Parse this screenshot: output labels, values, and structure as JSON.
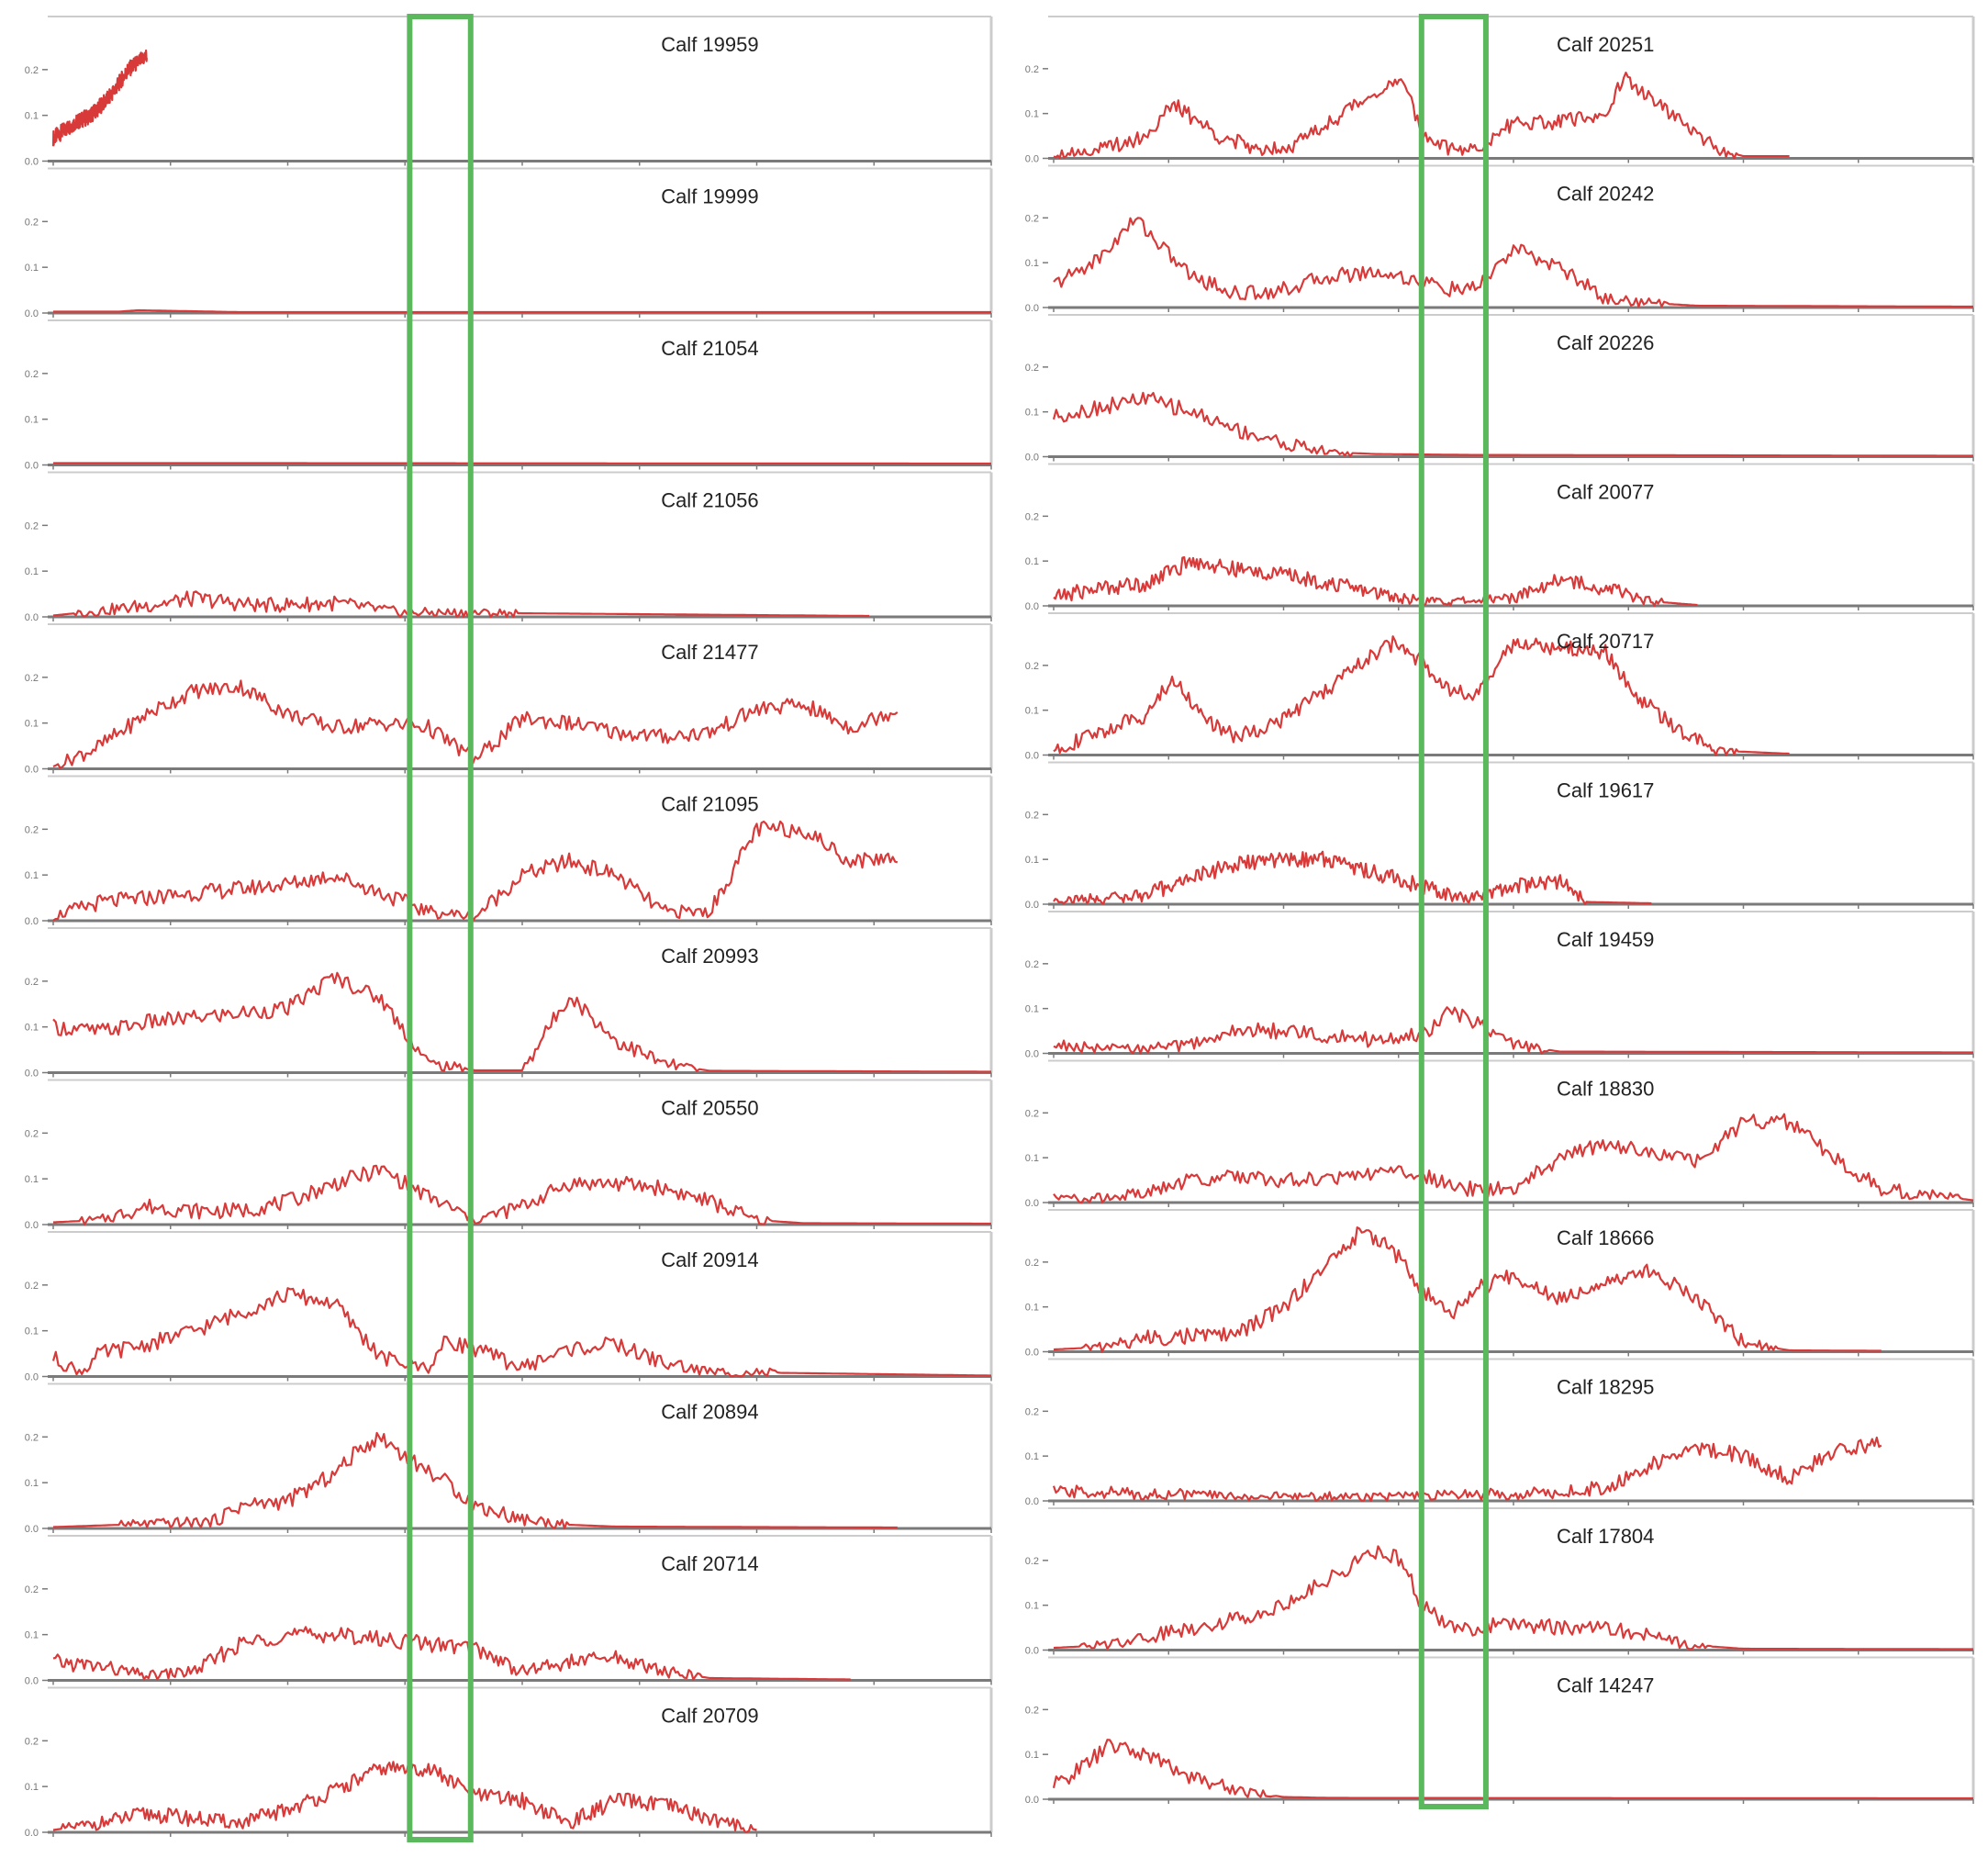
{
  "colors": {
    "series": "#d83a3a",
    "baseline": "#c02020",
    "highlight": "#5cb85c",
    "panel_border": "#cccccc",
    "axis": "#7a7a7a"
  },
  "chart_data": {
    "type": "line",
    "columns": [
      {
        "highlight_x": [
          0.38,
          0.445
        ],
        "panels": [
          {
            "title": "Calf 19959",
            "ylim": [
              0,
              0.3
            ],
            "x": [
              0,
              0.02,
              0.04,
              0.06,
              0.08,
              0.1
            ],
            "y": [
              0.05,
              0.08,
              0.1,
              0.14,
              0.2,
              0.23
            ]
          },
          {
            "title": "Calf 19999",
            "ylim": [
              0,
              0.3
            ],
            "x": [
              0,
              0.07,
              0.09,
              0.2,
              1.0
            ],
            "y": [
              0.003,
              0.003,
              0.006,
              0.002,
              0.002
            ]
          },
          {
            "title": "Calf 21054",
            "ylim": [
              0,
              0.3
            ],
            "x": [
              0,
              0.2,
              1.0
            ],
            "y": [
              0.004,
              0.004,
              0.003
            ]
          },
          {
            "title": "Calf 21056",
            "ylim": [
              0,
              0.3
            ],
            "x": [
              0,
              0.08,
              0.15,
              0.22,
              0.3,
              0.37,
              0.87
            ],
            "y": [
              0.003,
              0.02,
              0.04,
              0.025,
              0.03,
              0.01,
              0.002
            ]
          },
          {
            "title": "Calf 21477",
            "ylim": [
              0,
              0.3
            ],
            "x": [
              0,
              0.05,
              0.1,
              0.15,
              0.2,
              0.25,
              0.3,
              0.35,
              0.4,
              0.45,
              0.5,
              0.55,
              0.6,
              0.65,
              0.7,
              0.75,
              0.8,
              0.85,
              0.9
            ],
            "y": [
              0.005,
              0.05,
              0.12,
              0.17,
              0.18,
              0.12,
              0.09,
              0.1,
              0.09,
              0.02,
              0.11,
              0.1,
              0.08,
              0.07,
              0.08,
              0.13,
              0.14,
              0.09,
              0.13
            ]
          },
          {
            "title": "Calf 21095",
            "ylim": [
              0,
              0.3
            ],
            "x": [
              0,
              0.05,
              0.1,
              0.15,
              0.2,
              0.25,
              0.3,
              0.35,
              0.4,
              0.45,
              0.5,
              0.55,
              0.6,
              0.65,
              0.7,
              0.75,
              0.8,
              0.85,
              0.9
            ],
            "y": [
              0.01,
              0.04,
              0.05,
              0.06,
              0.07,
              0.08,
              0.1,
              0.06,
              0.02,
              0.01,
              0.1,
              0.13,
              0.1,
              0.02,
              0.02,
              0.2,
              0.2,
              0.13,
              0.14
            ]
          },
          {
            "title": "Calf 20993",
            "ylim": [
              0,
              0.3
            ],
            "x": [
              0,
              0.05,
              0.1,
              0.15,
              0.2,
              0.25,
              0.3,
              0.35,
              0.4,
              0.45,
              0.5,
              0.55,
              0.6,
              0.65,
              0.7,
              1.0
            ],
            "y": [
              0.1,
              0.09,
              0.11,
              0.12,
              0.13,
              0.14,
              0.21,
              0.16,
              0.02,
              0.005,
              0.005,
              0.17,
              0.07,
              0.02,
              0.004,
              0.002
            ]
          },
          {
            "title": "Calf 20550",
            "ylim": [
              0,
              0.3
            ],
            "x": [
              0,
              0.05,
              0.1,
              0.15,
              0.2,
              0.25,
              0.3,
              0.35,
              0.4,
              0.45,
              0.5,
              0.55,
              0.6,
              0.65,
              0.7,
              0.75,
              0.8,
              1.0
            ],
            "y": [
              0.005,
              0.01,
              0.04,
              0.03,
              0.03,
              0.05,
              0.09,
              0.12,
              0.06,
              0.01,
              0.04,
              0.09,
              0.09,
              0.08,
              0.05,
              0.01,
              0.003,
              0.002
            ]
          },
          {
            "title": "Calf 20914",
            "ylim": [
              0,
              0.3
            ],
            "x": [
              0,
              0.03,
              0.05,
              0.1,
              0.15,
              0.2,
              0.25,
              0.3,
              0.35,
              0.4,
              0.42,
              0.45,
              0.5,
              0.55,
              0.6,
              0.65,
              0.7,
              1.0
            ],
            "y": [
              0.04,
              0.01,
              0.05,
              0.07,
              0.1,
              0.14,
              0.18,
              0.16,
              0.04,
              0.02,
              0.08,
              0.06,
              0.02,
              0.06,
              0.07,
              0.03,
              0.01,
              0.002
            ]
          },
          {
            "title": "Calf 20894",
            "ylim": [
              0,
              0.3
            ],
            "x": [
              0,
              0.1,
              0.17,
              0.2,
              0.25,
              0.3,
              0.33,
              0.35,
              0.38,
              0.42,
              0.45,
              0.5,
              0.55,
              0.6,
              0.9
            ],
            "y": [
              0.003,
              0.01,
              0.015,
              0.05,
              0.06,
              0.12,
              0.18,
              0.2,
              0.15,
              0.1,
              0.05,
              0.02,
              0.008,
              0.004,
              0.002
            ]
          },
          {
            "title": "Calf 20714",
            "ylim": [
              0,
              0.3
            ],
            "x": [
              0,
              0.05,
              0.1,
              0.15,
              0.2,
              0.25,
              0.3,
              0.35,
              0.4,
              0.45,
              0.5,
              0.55,
              0.6,
              0.65,
              0.7,
              0.8,
              0.85
            ],
            "y": [
              0.04,
              0.03,
              0.01,
              0.02,
              0.08,
              0.1,
              0.1,
              0.09,
              0.08,
              0.07,
              0.02,
              0.04,
              0.05,
              0.02,
              0.005,
              0.003,
              0.002
            ]
          },
          {
            "title": "Calf 20709",
            "ylim": [
              0,
              0.3
            ],
            "x": [
              0,
              0.05,
              0.1,
              0.15,
              0.2,
              0.25,
              0.3,
              0.35,
              0.4,
              0.45,
              0.5,
              0.55,
              0.6,
              0.65,
              0.7,
              0.75
            ],
            "y": [
              0.005,
              0.02,
              0.04,
              0.03,
              0.02,
              0.05,
              0.09,
              0.14,
              0.14,
              0.08,
              0.07,
              0.02,
              0.07,
              0.06,
              0.03,
              0.005
            ]
          }
        ]
      },
      {
        "highlight_x": [
          0.4,
          0.47
        ],
        "panels": [
          {
            "title": "Calf 20251",
            "ylim": [
              0,
              0.3
            ],
            "x": [
              0,
              0.05,
              0.1,
              0.13,
              0.18,
              0.22,
              0.26,
              0.3,
              0.35,
              0.38,
              0.4,
              0.43,
              0.46,
              0.5,
              0.55,
              0.6,
              0.62,
              0.67,
              0.72,
              0.75,
              0.8
            ],
            "y": [
              0.01,
              0.02,
              0.05,
              0.12,
              0.05,
              0.02,
              0.03,
              0.08,
              0.15,
              0.17,
              0.06,
              0.02,
              0.02,
              0.08,
              0.08,
              0.1,
              0.18,
              0.1,
              0.02,
              0.005,
              0.005
            ]
          },
          {
            "title": "Calf 20242",
            "ylim": [
              0,
              0.3
            ],
            "x": [
              0,
              0.05,
              0.09,
              0.12,
              0.15,
              0.2,
              0.25,
              0.3,
              0.35,
              0.4,
              0.43,
              0.46,
              0.5,
              0.55,
              0.6,
              0.65,
              0.7,
              1.0
            ],
            "y": [
              0.05,
              0.11,
              0.2,
              0.13,
              0.07,
              0.03,
              0.04,
              0.07,
              0.08,
              0.06,
              0.04,
              0.04,
              0.13,
              0.09,
              0.02,
              0.01,
              0.004,
              0.002
            ]
          },
          {
            "title": "Calf 20226",
            "ylim": [
              0,
              0.3
            ],
            "x": [
              0,
              0.05,
              0.1,
              0.15,
              0.2,
              0.25,
              0.3,
              0.35,
              0.4,
              0.45,
              1.0
            ],
            "y": [
              0.09,
              0.11,
              0.13,
              0.1,
              0.06,
              0.03,
              0.01,
              0.006,
              0.005,
              0.004,
              0.002
            ]
          },
          {
            "title": "Calf 20077",
            "ylim": [
              0,
              0.3
            ],
            "x": [
              0,
              0.05,
              0.1,
              0.15,
              0.2,
              0.25,
              0.3,
              0.35,
              0.4,
              0.45,
              0.5,
              0.55,
              0.6,
              0.65,
              0.7
            ],
            "y": [
              0.02,
              0.04,
              0.05,
              0.1,
              0.08,
              0.07,
              0.05,
              0.03,
              0.01,
              0.01,
              0.02,
              0.06,
              0.04,
              0.01,
              0.002
            ]
          },
          {
            "title": "Calf 20717",
            "ylim": [
              0,
              0.3
            ],
            "x": [
              0,
              0.05,
              0.1,
              0.13,
              0.17,
              0.2,
              0.25,
              0.3,
              0.33,
              0.37,
              0.4,
              0.43,
              0.46,
              0.5,
              0.55,
              0.6,
              0.63,
              0.67,
              0.72,
              0.8
            ],
            "y": [
              0.01,
              0.05,
              0.09,
              0.17,
              0.07,
              0.04,
              0.08,
              0.15,
              0.2,
              0.25,
              0.21,
              0.15,
              0.13,
              0.25,
              0.24,
              0.23,
              0.14,
              0.07,
              0.01,
              0.003
            ]
          },
          {
            "title": "Calf 19617",
            "ylim": [
              0,
              0.3
            ],
            "x": [
              0,
              0.05,
              0.1,
              0.15,
              0.2,
              0.25,
              0.3,
              0.35,
              0.4,
              0.45,
              0.5,
              0.55,
              0.58,
              0.65
            ],
            "y": [
              0.01,
              0.012,
              0.02,
              0.06,
              0.09,
              0.1,
              0.1,
              0.07,
              0.04,
              0.01,
              0.04,
              0.05,
              0.005,
              0.002
            ]
          },
          {
            "title": "Calf 19459",
            "ylim": [
              0,
              0.3
            ],
            "x": [
              0,
              0.05,
              0.1,
              0.15,
              0.2,
              0.25,
              0.3,
              0.35,
              0.4,
              0.43,
              0.46,
              0.5,
              0.55,
              1.0
            ],
            "y": [
              0.02,
              0.01,
              0.01,
              0.02,
              0.05,
              0.05,
              0.04,
              0.03,
              0.04,
              0.09,
              0.07,
              0.02,
              0.004,
              0.002
            ]
          },
          {
            "title": "Calf 18830",
            "ylim": [
              0,
              0.3
            ],
            "x": [
              0,
              0.05,
              0.1,
              0.15,
              0.2,
              0.25,
              0.3,
              0.35,
              0.4,
              0.45,
              0.5,
              0.55,
              0.6,
              0.65,
              0.7,
              0.75,
              0.8,
              0.85,
              0.9,
              1.0
            ],
            "y": [
              0.01,
              0.01,
              0.02,
              0.05,
              0.06,
              0.05,
              0.05,
              0.07,
              0.06,
              0.03,
              0.03,
              0.1,
              0.13,
              0.11,
              0.09,
              0.18,
              0.18,
              0.1,
              0.03,
              0.005
            ]
          },
          {
            "title": "Calf 18666",
            "ylim": [
              0,
              0.3
            ],
            "x": [
              0,
              0.05,
              0.1,
              0.15,
              0.2,
              0.25,
              0.3,
              0.33,
              0.36,
              0.4,
              0.43,
              0.46,
              0.5,
              0.55,
              0.6,
              0.65,
              0.7,
              0.75,
              0.8,
              0.9
            ],
            "y": [
              0.005,
              0.01,
              0.03,
              0.035,
              0.04,
              0.1,
              0.2,
              0.26,
              0.25,
              0.14,
              0.08,
              0.14,
              0.17,
              0.12,
              0.16,
              0.18,
              0.12,
              0.02,
              0.003,
              0.002
            ]
          },
          {
            "title": "Calf 18295",
            "ylim": [
              0,
              0.3
            ],
            "x": [
              0,
              0.05,
              0.1,
              0.15,
              0.2,
              0.25,
              0.3,
              0.35,
              0.4,
              0.45,
              0.5,
              0.55,
              0.6,
              0.65,
              0.7,
              0.75,
              0.8,
              0.85,
              0.9
            ],
            "y": [
              0.02,
              0.02,
              0.015,
              0.015,
              0.01,
              0.01,
              0.01,
              0.01,
              0.01,
              0.015,
              0.015,
              0.02,
              0.03,
              0.08,
              0.12,
              0.1,
              0.05,
              0.11,
              0.13
            ]
          },
          {
            "title": "Calf 17804",
            "ylim": [
              0,
              0.3
            ],
            "x": [
              0,
              0.05,
              0.1,
              0.15,
              0.2,
              0.25,
              0.3,
              0.35,
              0.38,
              0.4,
              0.43,
              0.46,
              0.5,
              0.55,
              0.6,
              0.65,
              0.7,
              0.75,
              1.0
            ],
            "y": [
              0.005,
              0.01,
              0.03,
              0.05,
              0.07,
              0.1,
              0.16,
              0.22,
              0.2,
              0.1,
              0.05,
              0.05,
              0.06,
              0.05,
              0.05,
              0.03,
              0.01,
              0.003,
              0.002
            ]
          },
          {
            "title": "Calf 14247",
            "ylim": [
              0,
              0.3
            ],
            "x": [
              0,
              0.03,
              0.06,
              0.1,
              0.15,
              0.2,
              0.25,
              0.3,
              1.0
            ],
            "y": [
              0.03,
              0.07,
              0.12,
              0.1,
              0.05,
              0.02,
              0.005,
              0.003,
              0.002
            ]
          }
        ]
      }
    ]
  }
}
